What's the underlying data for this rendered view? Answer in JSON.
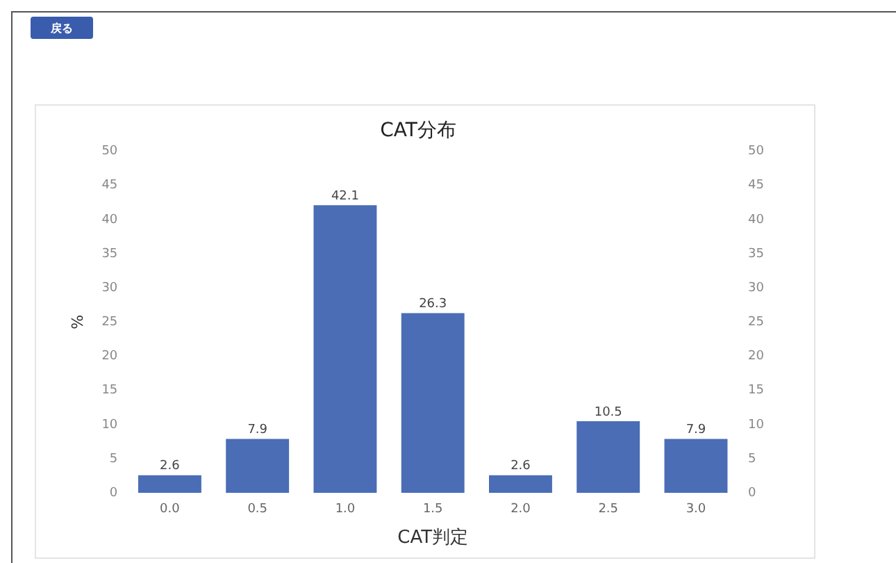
{
  "chart_data": {
    "type": "bar",
    "title": "CAT分布",
    "xlabel": "CAT判定",
    "ylabel": "%",
    "annotations": [
      "戻る"
    ],
    "categories": [
      "0.0",
      "0.5",
      "1.0",
      "1.5",
      "2.0",
      "2.5",
      "3.0"
    ],
    "values": [
      2.6,
      7.9,
      42.1,
      26.3,
      2.6,
      10.5,
      7.9
    ],
    "color": "#4a6db5",
    "ylim": [
      0,
      50
    ],
    "yticks": [
      0,
      5,
      10,
      15,
      20,
      25,
      30,
      35,
      40,
      45,
      50
    ],
    "y2lim": [
      0,
      50
    ],
    "y2ticks": [
      0,
      5,
      10,
      15,
      20,
      25,
      30,
      35,
      40,
      45,
      50
    ],
    "grid": false,
    "legend": false,
    "data_labels": true
  }
}
